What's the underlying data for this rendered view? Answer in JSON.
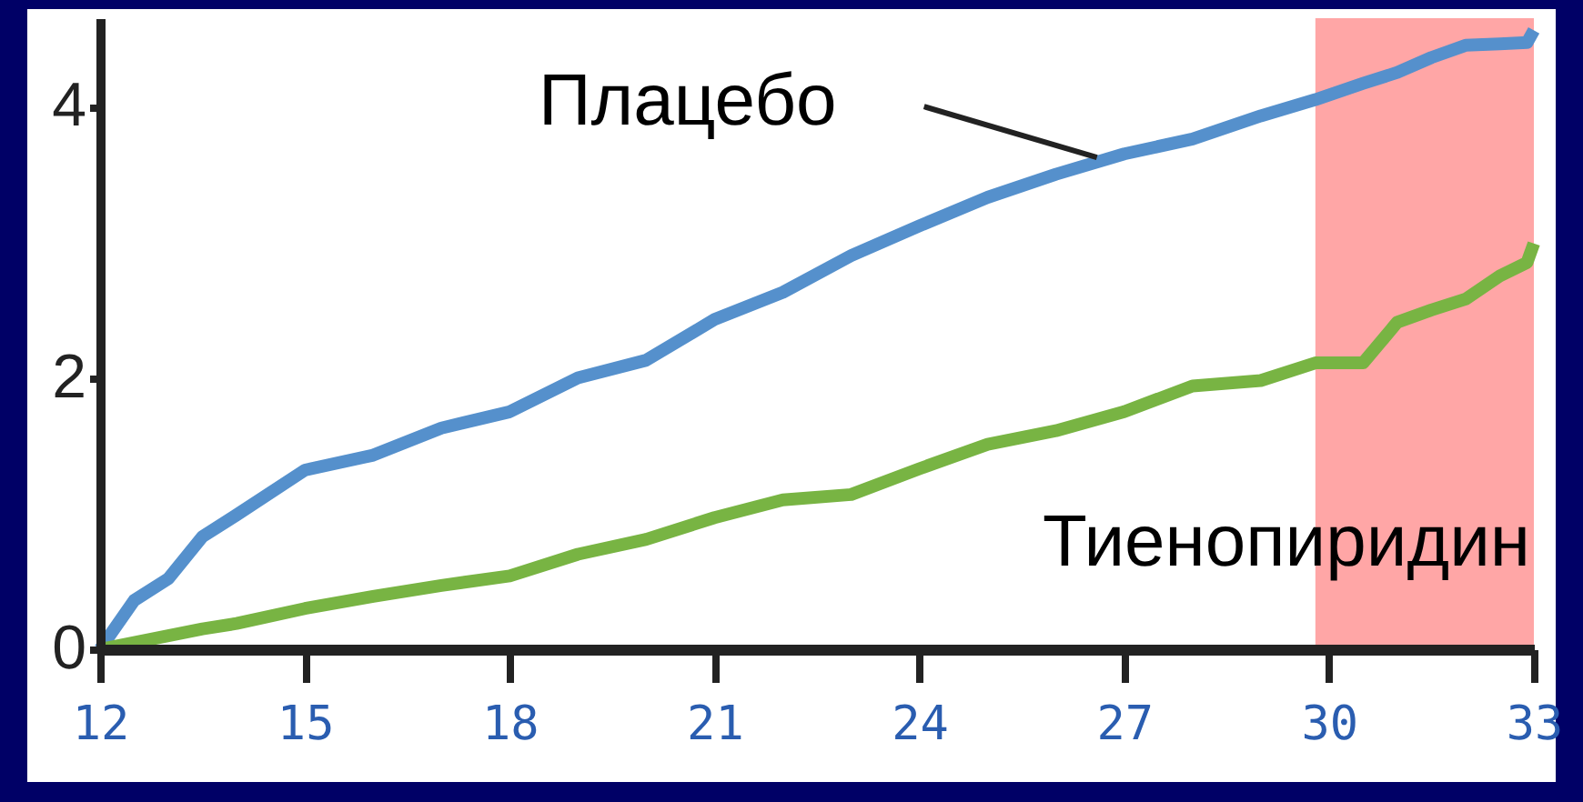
{
  "chart_data": {
    "type": "line",
    "x": [
      12,
      12.5,
      13,
      13.5,
      14,
      15,
      16,
      17,
      18,
      19,
      20,
      21,
      22,
      23,
      24,
      25,
      26,
      27,
      28,
      29,
      29.8,
      30.5,
      31,
      31.5,
      32,
      32.5,
      32.9,
      33
    ],
    "series": [
      {
        "name": "Плацебо",
        "color": "#5590cc",
        "values": [
          0,
          0.36,
          0.52,
          0.83,
          0.99,
          1.32,
          1.43,
          1.63,
          1.75,
          2.0,
          2.13,
          2.43,
          2.63,
          2.9,
          3.12,
          3.33,
          3.5,
          3.65,
          3.76,
          3.93,
          4.05,
          4.17,
          4.25,
          4.36,
          4.45,
          4.46,
          4.47,
          4.56
        ]
      },
      {
        "name": "Тиенопиридин",
        "color": "#78b443",
        "values": [
          0,
          0.05,
          0.1,
          0.15,
          0.19,
          0.3,
          0.39,
          0.47,
          0.54,
          0.7,
          0.81,
          0.97,
          1.1,
          1.14,
          1.33,
          1.51,
          1.61,
          1.75,
          1.94,
          1.98,
          2.11,
          2.11,
          2.41,
          2.5,
          2.58,
          2.75,
          2.85,
          2.99
        ]
      }
    ],
    "xlim": [
      12,
      33
    ],
    "xticks": [
      12,
      15,
      18,
      21,
      24,
      27,
      30,
      33
    ],
    "ylim": [
      0,
      4.65
    ],
    "yticks": [
      0,
      2,
      4
    ],
    "bands": [
      {
        "axis": "x",
        "from": 29.8,
        "to": 33,
        "color": "#ffa6a6"
      }
    ],
    "grid": false,
    "marker": "none",
    "line_style": "solid"
  }
}
